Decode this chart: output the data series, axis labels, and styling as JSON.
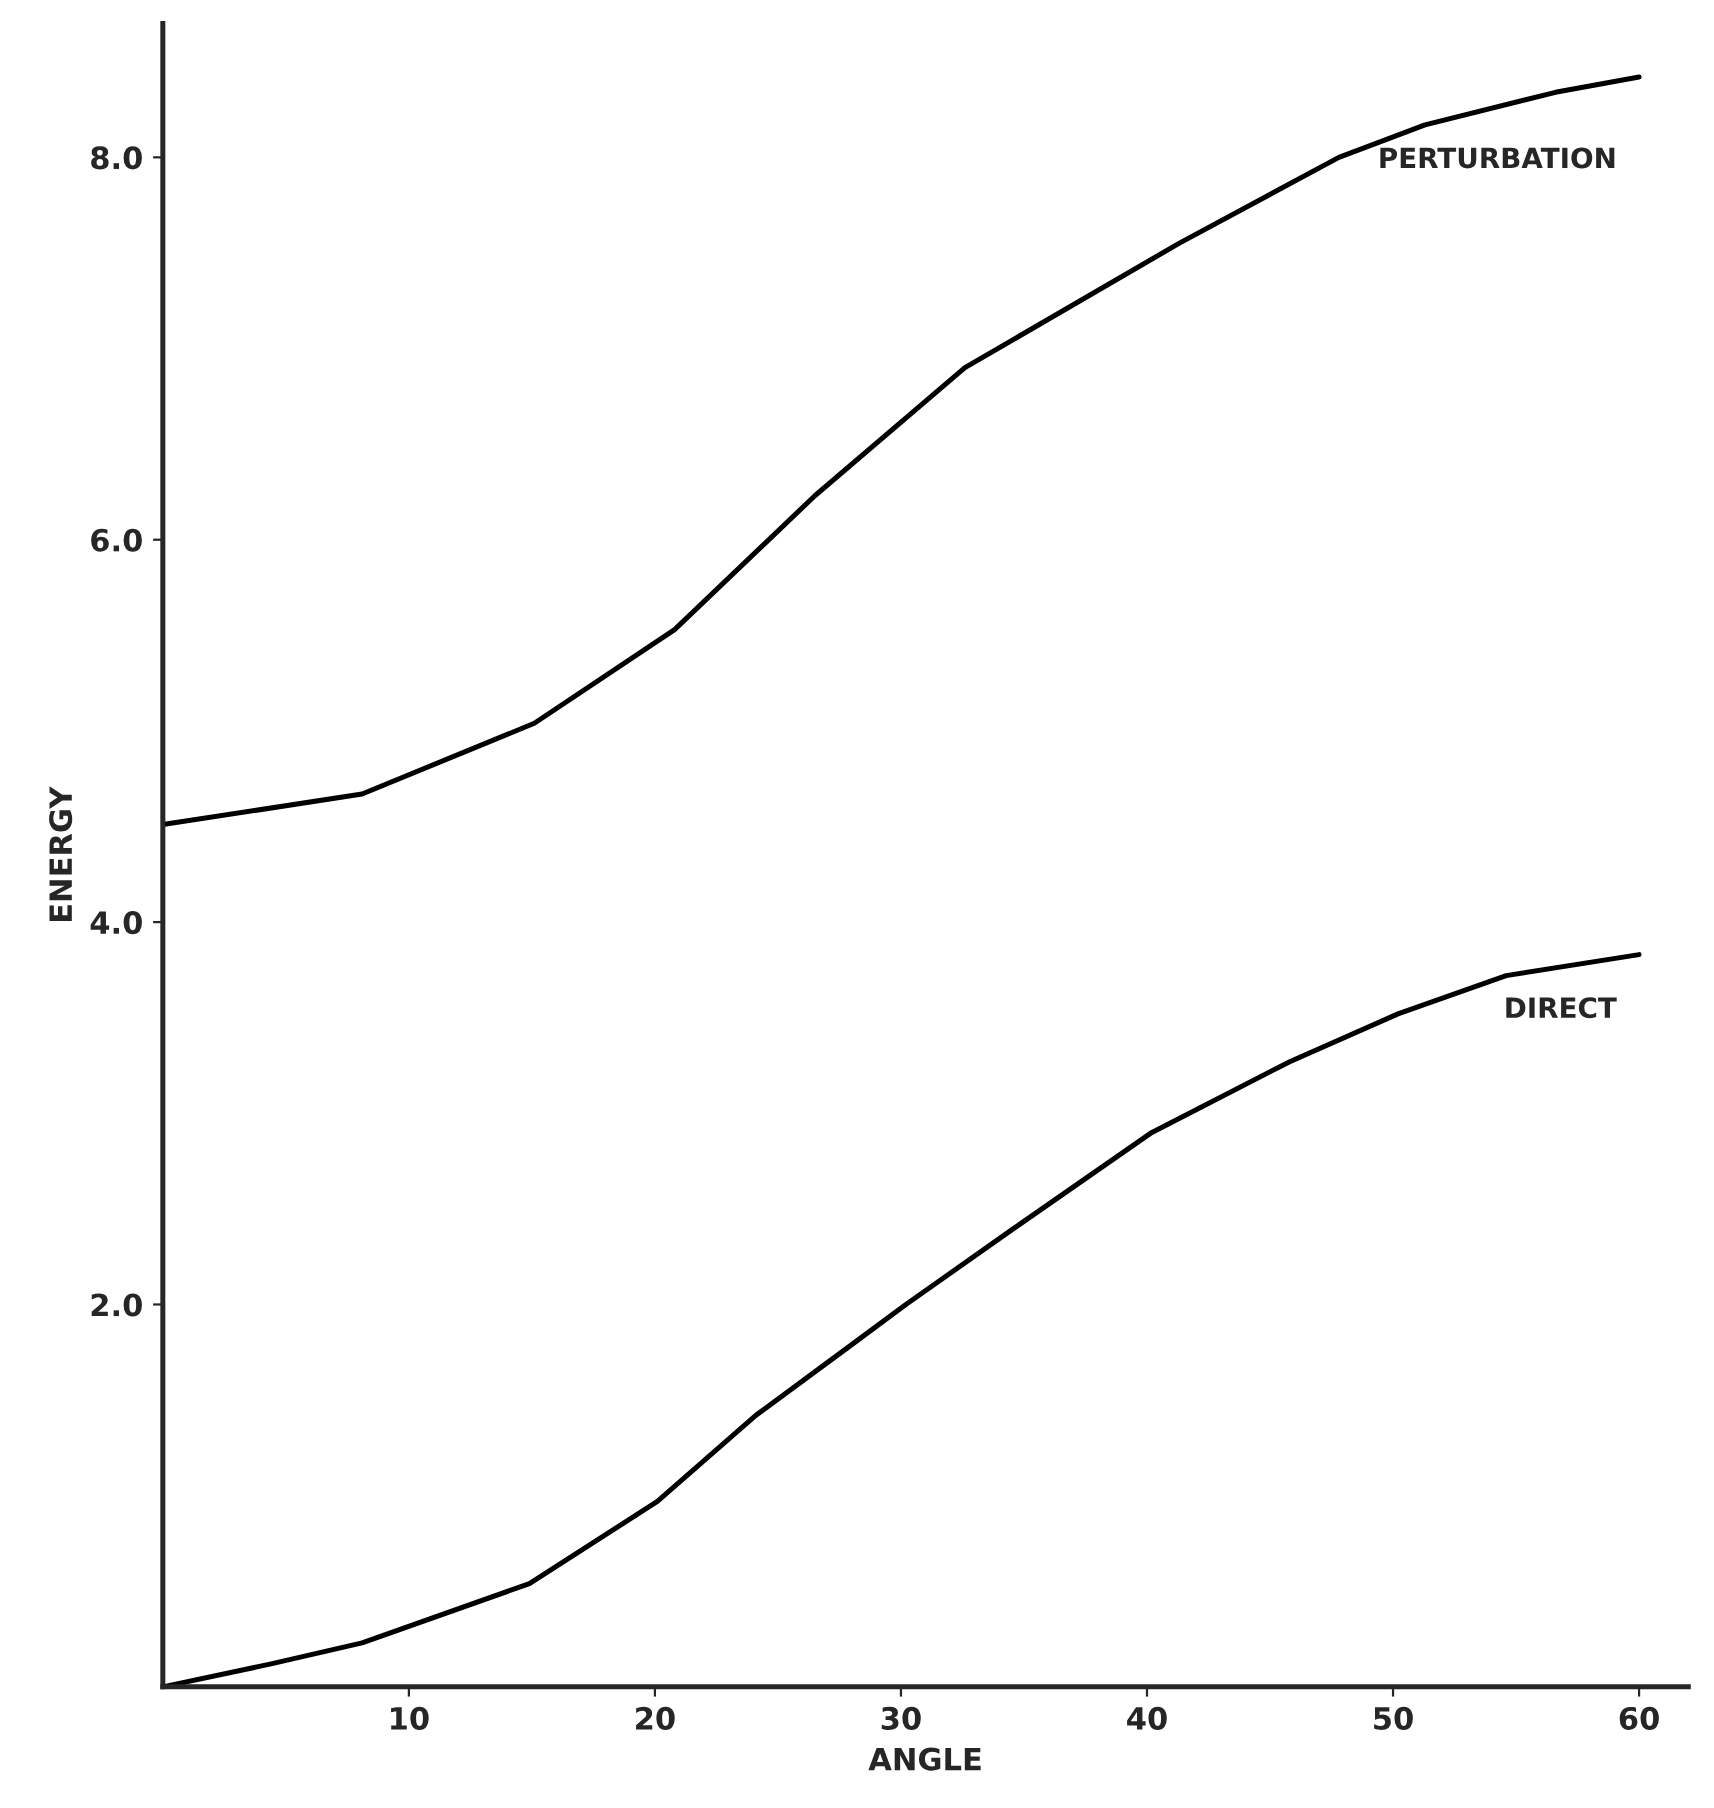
{
  "chart_data": {
    "type": "line",
    "xlabel": "ANGLE",
    "ylabel": "ENERGY",
    "xlim": [
      0,
      62
    ],
    "ylim": [
      0,
      8.7
    ],
    "xticks": [
      10,
      20,
      30,
      40,
      50,
      60
    ],
    "yticks": [
      {
        "value": 2,
        "label": "2.0"
      },
      {
        "value": 4,
        "label": "4.0"
      },
      {
        "value": 6,
        "label": "6.0"
      },
      {
        "value": 8,
        "label": "8.0"
      }
    ],
    "grid": false,
    "legend": false,
    "marker": "none",
    "line_style": "solid",
    "series": [
      {
        "name": "PERTURBATION",
        "color": "#000000",
        "x": [
          0,
          8.1,
          15.1,
          20.8,
          26.5,
          32.6,
          41.3,
          47.8,
          51.3,
          56.6,
          60
        ],
        "values": [
          4.51,
          4.67,
          5.04,
          5.53,
          6.23,
          6.9,
          7.55,
          8.0,
          8.17,
          8.34,
          8.42
        ]
      },
      {
        "name": "DIRECT",
        "color": "#000000",
        "x": [
          0,
          4.4,
          8.1,
          14.9,
          20.1,
          24.1,
          28.0,
          30.2,
          34.5,
          40.2,
          45.8,
          50.2,
          54.6,
          60
        ],
        "values": [
          0,
          0.12,
          0.23,
          0.54,
          0.97,
          1.42,
          1.79,
          2.0,
          2.39,
          2.9,
          3.27,
          3.52,
          3.72,
          3.83
        ]
      }
    ]
  }
}
